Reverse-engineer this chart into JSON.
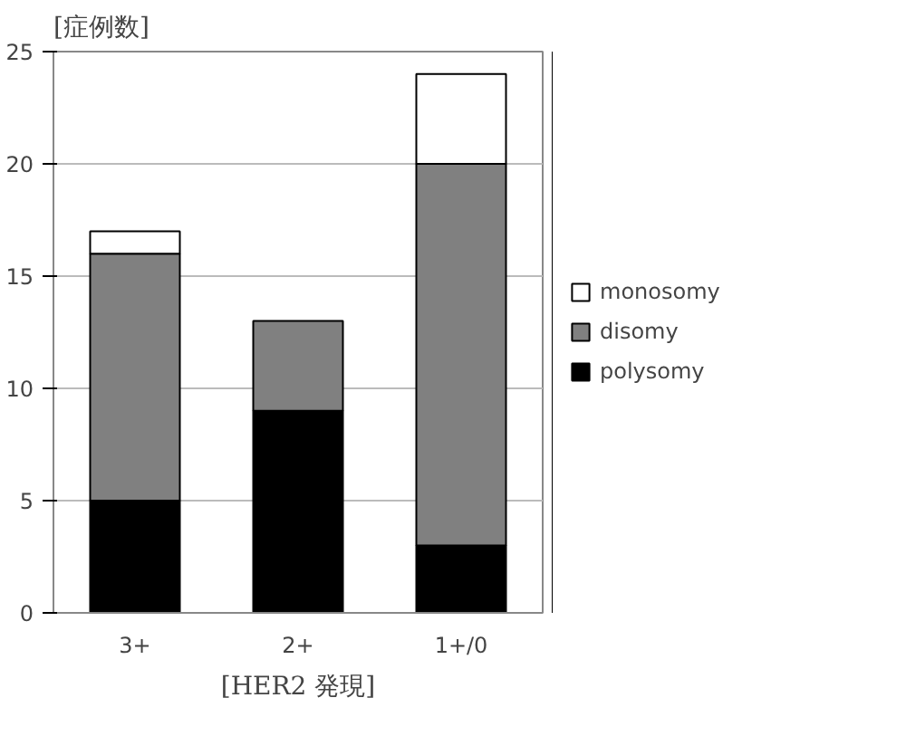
{
  "chart_data": {
    "type": "bar",
    "stacked": true,
    "ylabel": "[症例数]",
    "xlabel": "[HER2 発現]",
    "categories": [
      "3+",
      "2+",
      "1+/0"
    ],
    "series": [
      {
        "name": "polysomy",
        "color": "#000000",
        "values": [
          5,
          9,
          3
        ]
      },
      {
        "name": "disomy",
        "color": "#808080",
        "values": [
          11,
          4,
          17
        ]
      },
      {
        "name": "monosomy",
        "color": "#ffffff",
        "values": [
          1,
          0,
          4
        ]
      }
    ],
    "ylim": [
      0,
      25
    ],
    "yticks": [
      0,
      5,
      10,
      15,
      20,
      25
    ],
    "grid": "y",
    "legend": "right"
  }
}
